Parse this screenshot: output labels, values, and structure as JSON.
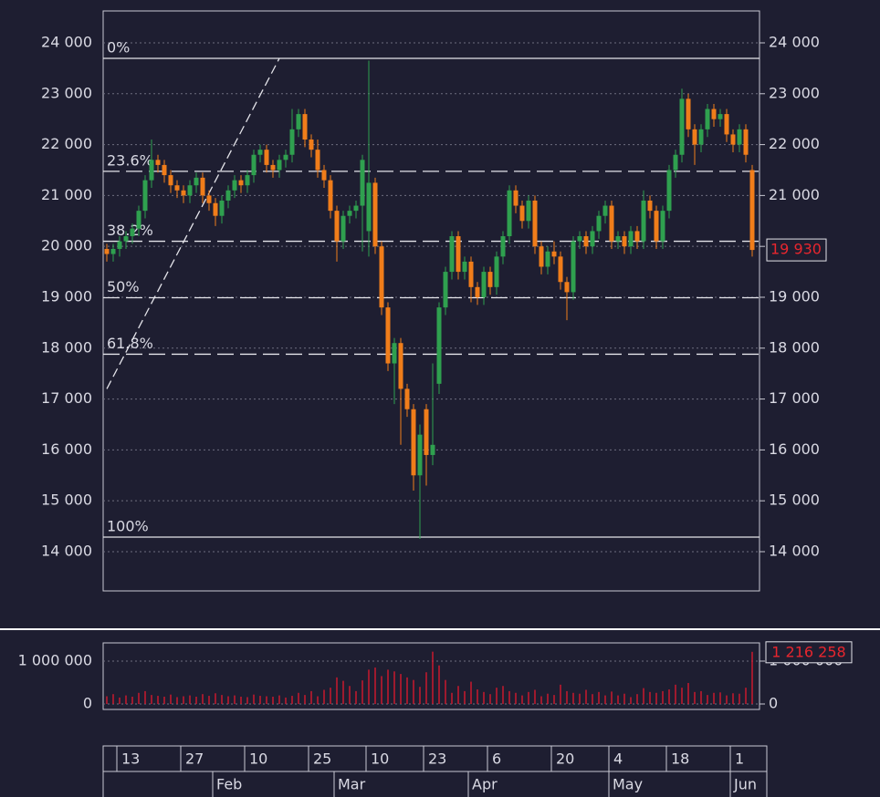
{
  "chart_data": {
    "type": "candlestick",
    "categories": [
      null,
      null,
      "13",
      null,
      null,
      null,
      null,
      null,
      null,
      null,
      null,
      null,
      "27",
      null,
      null,
      null,
      null,
      null,
      null,
      null,
      null,
      null,
      "10",
      null,
      null,
      null,
      null,
      null,
      null,
      null,
      null,
      null,
      "25",
      null,
      null,
      null,
      null,
      null,
      null,
      null,
      null,
      "10",
      null,
      null,
      null,
      null,
      null,
      null,
      null,
      null,
      "23",
      null,
      null,
      null,
      null,
      null,
      null,
      null,
      null,
      null,
      "6",
      null,
      null,
      null,
      null,
      null,
      null,
      null,
      null,
      null,
      "20",
      null,
      null,
      null,
      null,
      null,
      null,
      null,
      null,
      "4",
      null,
      null,
      null,
      null,
      null,
      null,
      null,
      null,
      "18",
      null,
      null,
      null,
      null,
      null,
      null,
      null,
      null,
      null,
      "1",
      null,
      null,
      null
    ],
    "months": [
      null,
      null,
      null,
      null,
      null,
      null,
      null,
      null,
      null,
      null,
      null,
      null,
      null,
      null,
      null,
      null,
      null,
      "Feb",
      null,
      null,
      null,
      null,
      null,
      null,
      null,
      null,
      null,
      null,
      null,
      null,
      null,
      null,
      null,
      null,
      null,
      null,
      "Mar",
      null,
      null,
      null,
      null,
      null,
      null,
      null,
      null,
      null,
      null,
      null,
      null,
      null,
      null,
      null,
      null,
      null,
      null,
      null,
      null,
      "Apr",
      null,
      null,
      null,
      null,
      null,
      null,
      null,
      null,
      null,
      null,
      null,
      null,
      null,
      null,
      null,
      null,
      null,
      null,
      null,
      null,
      null,
      "May",
      null,
      null,
      null,
      null,
      null,
      null,
      null,
      null,
      null,
      null,
      null,
      null,
      null,
      null,
      null,
      null,
      null,
      null,
      "Jun",
      null,
      null,
      null
    ],
    "open": [
      19950,
      19850,
      19950,
      20100,
      20200,
      20350,
      20700,
      21300,
      21700,
      21600,
      21400,
      21200,
      21100,
      21000,
      21200,
      21350,
      21000,
      20850,
      20600,
      20900,
      21100,
      21300,
      21200,
      21400,
      21800,
      21900,
      21600,
      21500,
      21700,
      21800,
      22300,
      22600,
      22100,
      21900,
      21500,
      21300,
      20700,
      20100,
      20600,
      20700,
      20800,
      20300,
      21250,
      20000,
      18800,
      17700,
      18100,
      17200,
      16800,
      15500,
      16800,
      15900,
      17300,
      18800,
      19500,
      20200,
      19500,
      19700,
      19200,
      19000,
      19500,
      19200,
      19800,
      20200,
      21100,
      20800,
      20500,
      20900,
      20000,
      19600,
      19900,
      19800,
      19300,
      19100,
      20100,
      20200,
      20000,
      20300,
      20600,
      20800,
      20100,
      20200,
      20000,
      20300,
      20100,
      20900,
      20700,
      20100,
      20700,
      21500,
      21800,
      22900,
      22300,
      22000,
      22300,
      22700,
      22500,
      22600,
      22200,
      22000,
      22300,
      21500
    ],
    "high": [
      20050,
      20050,
      20200,
      20300,
      20450,
      20800,
      21400,
      22100,
      21800,
      21700,
      21500,
      21300,
      21200,
      21300,
      21450,
      21450,
      21100,
      20950,
      21000,
      21200,
      21400,
      21400,
      21500,
      21900,
      22000,
      22000,
      21700,
      21800,
      21900,
      22700,
      22700,
      22700,
      22200,
      22100,
      21600,
      21400,
      20800,
      20700,
      20800,
      20900,
      21800,
      23650,
      21350,
      20100,
      18900,
      18200,
      18200,
      17300,
      16900,
      16500,
      16900,
      17700,
      18900,
      19600,
      20300,
      20300,
      19800,
      19800,
      19300,
      19600,
      19600,
      19900,
      20300,
      21200,
      21200,
      20900,
      21000,
      21000,
      20100,
      20000,
      20100,
      19900,
      19400,
      20200,
      20300,
      20300,
      20400,
      20700,
      20900,
      20900,
      20300,
      20300,
      20400,
      20400,
      21100,
      21000,
      20800,
      20800,
      21600,
      21900,
      23100,
      23000,
      22400,
      22400,
      22800,
      22800,
      22700,
      22700,
      22300,
      22400,
      22400,
      21600
    ],
    "low": [
      19700,
      19700,
      19800,
      19950,
      20050,
      20200,
      20550,
      21150,
      21450,
      21250,
      21050,
      20950,
      20850,
      20850,
      21050,
      20850,
      20700,
      20400,
      20450,
      20750,
      20950,
      21050,
      21050,
      21250,
      21650,
      21450,
      21350,
      21350,
      21550,
      21650,
      22150,
      21950,
      21750,
      21350,
      21150,
      20550,
      19700,
      19950,
      20450,
      20550,
      19900,
      19800,
      19850,
      18650,
      17550,
      16900,
      16100,
      16650,
      15200,
      14250,
      15300,
      15700,
      17100,
      18650,
      19350,
      19350,
      19350,
      18900,
      18850,
      18850,
      19050,
      19050,
      19650,
      20050,
      20650,
      20350,
      20350,
      19850,
      19450,
      19450,
      19650,
      19150,
      18550,
      18950,
      19950,
      19850,
      19850,
      20150,
      20450,
      19950,
      19950,
      19850,
      19850,
      19950,
      19950,
      20550,
      19950,
      19950,
      20550,
      21350,
      21650,
      22150,
      21600,
      21850,
      22150,
      22350,
      22350,
      22050,
      21850,
      21850,
      21650,
      19800
    ],
    "close": [
      19850,
      19950,
      20100,
      20200,
      20350,
      20700,
      21300,
      21700,
      21600,
      21400,
      21200,
      21100,
      21000,
      21200,
      21350,
      21000,
      20850,
      20600,
      20900,
      21100,
      21300,
      21200,
      21400,
      21800,
      21900,
      21600,
      21500,
      21700,
      21800,
      22300,
      22600,
      22100,
      21900,
      21500,
      21300,
      20700,
      20100,
      20600,
      20700,
      20800,
      21700,
      21250,
      20000,
      18800,
      17700,
      18100,
      17200,
      16800,
      15500,
      16300,
      15900,
      16100,
      18800,
      19500,
      20200,
      19500,
      19700,
      19200,
      19000,
      19500,
      19200,
      19800,
      20200,
      21100,
      20800,
      20500,
      20900,
      20000,
      19600,
      19900,
      19800,
      19300,
      19100,
      20100,
      20200,
      20000,
      20300,
      20600,
      20800,
      20100,
      20200,
      20000,
      20300,
      20100,
      20900,
      20700,
      20100,
      20700,
      21500,
      21800,
      22900,
      22300,
      22000,
      22300,
      22700,
      22500,
      22600,
      22200,
      22000,
      22300,
      21800,
      19930
    ],
    "last_value_label": "19 930",
    "up_color": "#2fa04f",
    "down_color": "#f07d1a",
    "ylim": [
      13229,
      24627
    ],
    "yticks": [
      {
        "value": 14000,
        "label": "14 000"
      },
      {
        "value": 15000,
        "label": "15 000"
      },
      {
        "value": 16000,
        "label": "16 000"
      },
      {
        "value": 17000,
        "label": "17 000"
      },
      {
        "value": 18000,
        "label": "18 000"
      },
      {
        "value": 19000,
        "label": "19 000"
      },
      {
        "value": 20000,
        "label": "20 000"
      },
      {
        "value": 21000,
        "label": "21 000"
      },
      {
        "value": 22000,
        "label": "22 000"
      },
      {
        "value": 23000,
        "label": "23 000"
      },
      {
        "value": 24000,
        "label": "24 000"
      }
    ],
    "grid": true,
    "fib_levels": [
      {
        "label": "0%",
        "value": 23695
      },
      {
        "label": "23.6%",
        "value": 21475
      },
      {
        "label": "38.2%",
        "value": 20101
      },
      {
        "label": "50%",
        "value": 18991
      },
      {
        "label": "61.8%",
        "value": 17881
      },
      {
        "label": "100%",
        "value": 14287
      }
    ],
    "trendline": {
      "indices": [
        0,
        27
      ],
      "values": [
        17200,
        23695
      ]
    },
    "volume": {
      "values": [
        180000,
        230000,
        150000,
        200000,
        170000,
        260000,
        300000,
        210000,
        190000,
        170000,
        220000,
        160000,
        180000,
        200000,
        170000,
        230000,
        190000,
        250000,
        210000,
        180000,
        200000,
        170000,
        160000,
        220000,
        190000,
        180000,
        170000,
        200000,
        150000,
        190000,
        260000,
        210000,
        300000,
        180000,
        330000,
        380000,
        620000,
        540000,
        420000,
        300000,
        550000,
        800000,
        850000,
        650000,
        800000,
        760000,
        700000,
        620000,
        560000,
        400000,
        740000,
        1220000,
        900000,
        560000,
        260000,
        420000,
        300000,
        520000,
        340000,
        280000,
        230000,
        380000,
        420000,
        300000,
        260000,
        200000,
        280000,
        330000,
        180000,
        240000,
        210000,
        450000,
        300000,
        260000,
        240000,
        330000,
        230000,
        280000,
        200000,
        290000,
        200000,
        240000,
        160000,
        230000,
        370000,
        280000,
        260000,
        300000,
        340000,
        450000,
        380000,
        490000,
        280000,
        300000,
        210000,
        260000,
        270000,
        200000,
        250000,
        240000,
        380000,
        1216258
      ],
      "last_value_label": "1 216 258",
      "color": "#c8192e",
      "ylim": [
        0,
        1425000
      ],
      "yticks": [
        0,
        {
          "value": 1000000,
          "label": "1 000 000"
        }
      ]
    }
  }
}
